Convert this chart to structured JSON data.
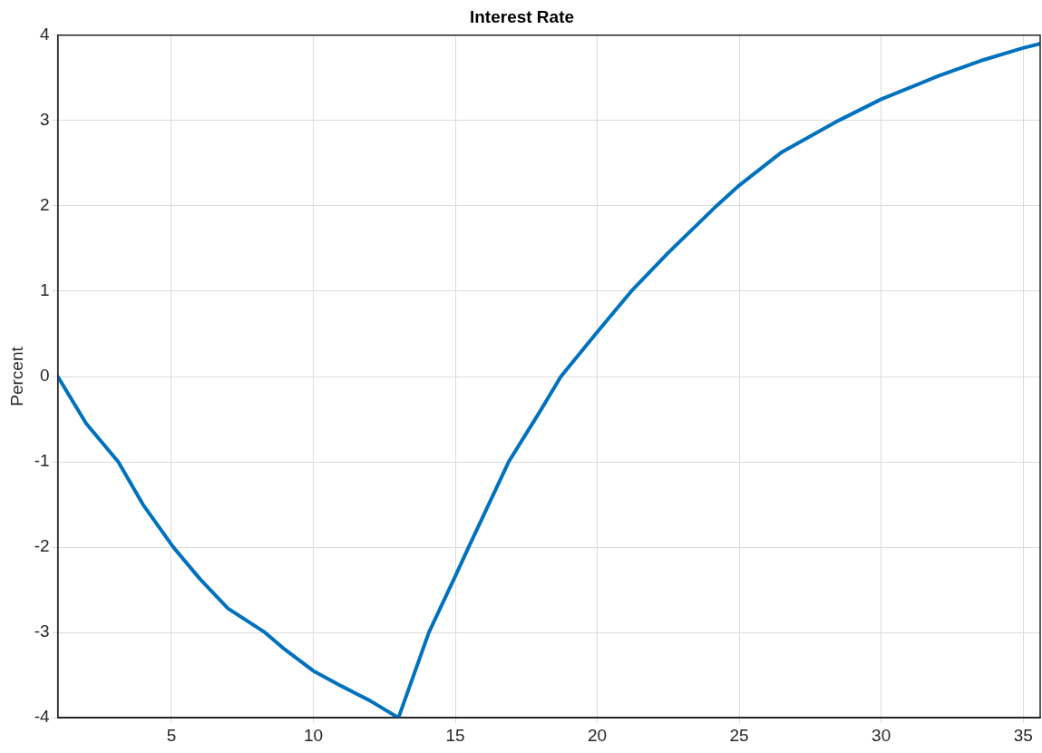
{
  "chart_data": {
    "type": "line",
    "title": "Interest Rate",
    "ylabel": "Percent",
    "xlim": [
      1,
      35.6
    ],
    "xticks": [
      5,
      10,
      15,
      20,
      25,
      30,
      35
    ],
    "ylim": [
      -4,
      4
    ],
    "yticks": [
      -4,
      -3,
      -2,
      -1,
      0,
      1,
      2,
      3,
      4
    ],
    "grid": true,
    "legend": false,
    "series": [
      {
        "color": "#0072bd",
        "x": [
          1,
          2,
          3.13,
          4,
          5.07,
          6,
          7,
          8.3,
          9,
          10,
          11,
          12,
          13,
          14.07,
          15,
          15.47,
          16.88,
          18,
          18.72,
          20,
          21.2,
          22.5,
          24.2,
          25,
          26.5,
          28.5,
          30,
          32,
          33.5,
          35,
          35.6
        ],
        "values": [
          0,
          -0.55,
          -1,
          -1.5,
          -2,
          -2.37,
          -2.72,
          -3,
          -3.2,
          -3.45,
          -3.63,
          -3.8,
          -4,
          -3,
          -2.34,
          -2,
          -1,
          -0.4,
          0,
          0.52,
          1,
          1.45,
          2,
          2.24,
          2.63,
          3,
          3.25,
          3.52,
          3.7,
          3.85,
          3.9
        ]
      }
    ]
  }
}
